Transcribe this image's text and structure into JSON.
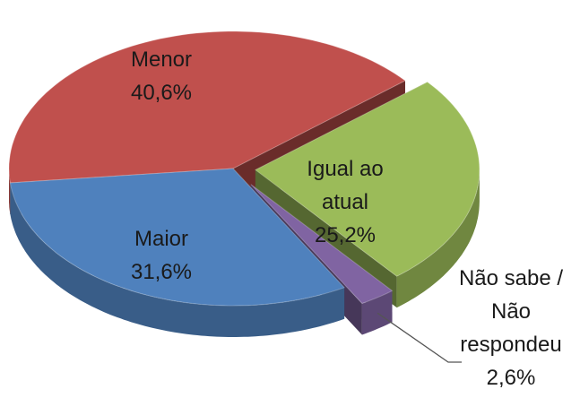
{
  "chart_data": {
    "type": "pie",
    "categories": [
      "Menor",
      "Igual ao atual",
      "Não sabe / Não respondeu",
      "Maior"
    ],
    "values": [
      40.6,
      25.2,
      2.6,
      31.6
    ],
    "value_labels": [
      "40,6%",
      "25,2%",
      "2,6%",
      "31,6%"
    ],
    "colors": [
      "#c0504d",
      "#9bbb59",
      "#8064a2",
      "#4f81bd"
    ],
    "three_d": true
  }
}
